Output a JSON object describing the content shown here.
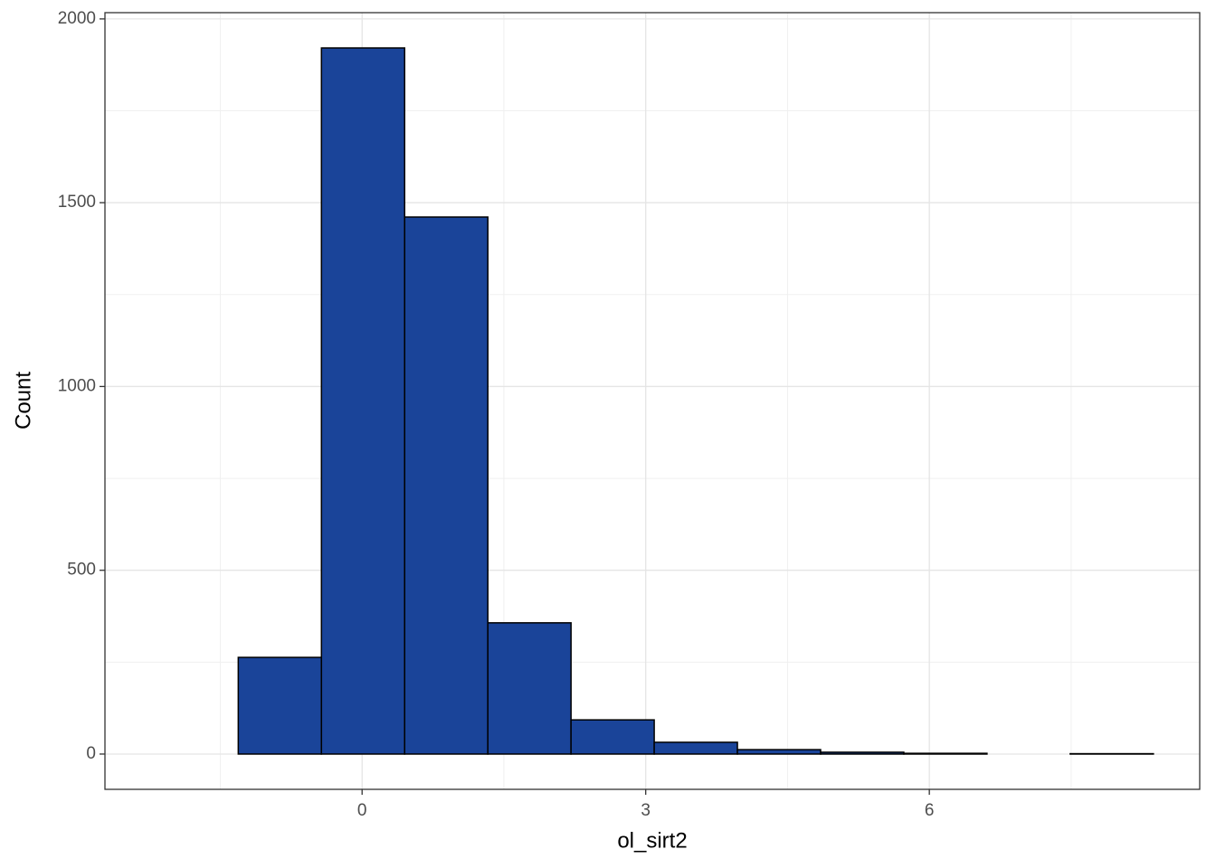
{
  "chart_data": {
    "type": "histogram",
    "x_label": "ol_sirt2",
    "y_label": "Count",
    "bins": [
      -2.19,
      -1.31,
      -0.43,
      0.45,
      1.33,
      2.21,
      3.09,
      3.97,
      4.85,
      5.73,
      6.61,
      7.49,
      8.37
    ],
    "values": [
      0,
      263,
      1921,
      1461,
      357,
      93,
      32,
      12,
      5,
      2,
      0,
      1
    ],
    "color": "#1a4499",
    "xlim": [
      -2.72,
      8.86
    ],
    "ylim": [
      -96,
      2017
    ],
    "xticks": [
      0,
      3,
      6
    ],
    "yticks": [
      0,
      500,
      1000,
      1500,
      2000
    ],
    "grid": true,
    "minor_grid": true
  }
}
